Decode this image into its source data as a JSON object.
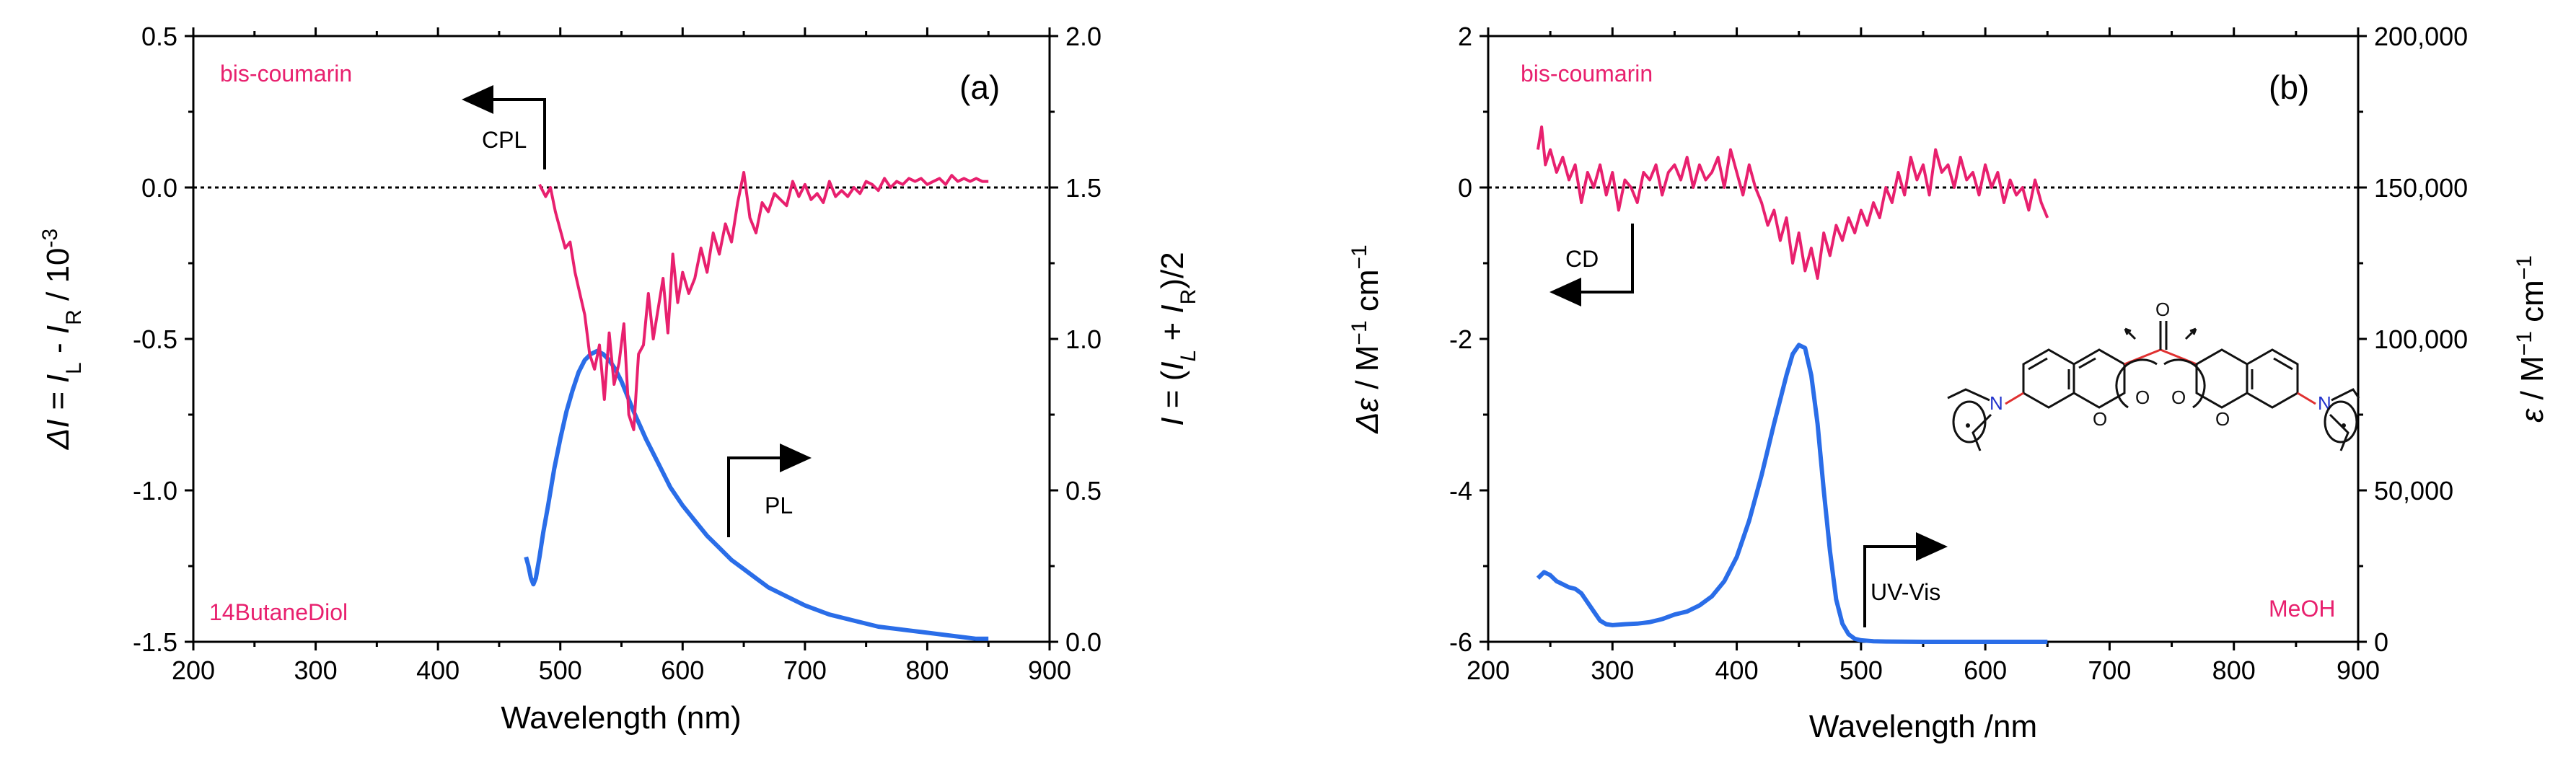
{
  "colors": {
    "cpl": "#e8206e",
    "pl": "#2a6de8",
    "axis": "#000000"
  },
  "chart_data": [
    {
      "type": "line",
      "panel_label": "(a)",
      "sample": "bis-coumarin",
      "solvent": "14ButaneDiol",
      "xlabel": "Wavelength (nm)",
      "ylabel_left": "ΔI = I_L - I_R / 10^-3",
      "ylabel_left_parts": {
        "a": "Δ",
        "b": "I = ",
        "c": "I",
        "d": "L",
        "e": " - ",
        "f": "I",
        "g": "R",
        "h": " / 10",
        "i": "-3"
      },
      "ylabel_right": "I = (I_L + I_R)/2",
      "ylabel_right_parts": {
        "a": "I",
        "b": " = (",
        "c": "I",
        "d": "L",
        "e": " + ",
        "f": "I",
        "g": "R",
        "h": ")/2"
      },
      "xlim": [
        200,
        900
      ],
      "ylim_left": [
        -1.5,
        0.5
      ],
      "ylim_right": [
        0.0,
        2.0
      ],
      "xticks": [
        "200",
        "300",
        "400",
        "500",
        "600",
        "700",
        "800",
        "900"
      ],
      "yticks_left": [
        "-1.5",
        "-1.0",
        "-0.5",
        "0.0",
        "0.5"
      ],
      "yticks_right": [
        "0.0",
        "0.5",
        "1.0",
        "1.5",
        "2.0"
      ],
      "annotations": [
        "CPL",
        "PL"
      ],
      "series": [
        {
          "name": "CPL",
          "axis": "left",
          "x": [
            483,
            488,
            492,
            496,
            500,
            504,
            508,
            512,
            516,
            520,
            524,
            528,
            532,
            536,
            540,
            544,
            548,
            552,
            556,
            560,
            564,
            568,
            572,
            576,
            580,
            584,
            588,
            592,
            596,
            600,
            605,
            610,
            615,
            620,
            625,
            630,
            635,
            640,
            645,
            650,
            655,
            660,
            665,
            670,
            675,
            680,
            685,
            690,
            695,
            700,
            705,
            710,
            715,
            720,
            725,
            730,
            735,
            740,
            745,
            750,
            755,
            760,
            765,
            770,
            775,
            780,
            785,
            790,
            795,
            800,
            805,
            810,
            815,
            820,
            825,
            830,
            835,
            840,
            845,
            850
          ],
          "y": [
            0.01,
            -0.03,
            0.0,
            -0.08,
            -0.14,
            -0.2,
            -0.18,
            -0.28,
            -0.35,
            -0.42,
            -0.55,
            -0.6,
            -0.52,
            -0.7,
            -0.48,
            -0.65,
            -0.58,
            -0.45,
            -0.75,
            -0.8,
            -0.55,
            -0.52,
            -0.35,
            -0.5,
            -0.4,
            -0.3,
            -0.48,
            -0.22,
            -0.38,
            -0.28,
            -0.35,
            -0.3,
            -0.2,
            -0.28,
            -0.15,
            -0.22,
            -0.12,
            -0.18,
            -0.05,
            0.05,
            -0.1,
            -0.15,
            -0.05,
            -0.08,
            -0.02,
            -0.04,
            -0.06,
            0.02,
            -0.03,
            0.01,
            -0.04,
            -0.02,
            -0.05,
            0.02,
            -0.03,
            -0.01,
            -0.03,
            0.0,
            -0.02,
            0.02,
            0.01,
            -0.01,
            0.03,
            0.0,
            0.02,
            0.01,
            0.03,
            0.02,
            0.03,
            0.01,
            0.02,
            0.03,
            0.01,
            0.04,
            0.02,
            0.03,
            0.02,
            0.03,
            0.02,
            0.02
          ]
        },
        {
          "name": "PL",
          "axis": "right",
          "x": [
            472,
            474,
            476,
            478,
            480,
            483,
            486,
            490,
            495,
            500,
            505,
            510,
            515,
            520,
            525,
            530,
            535,
            540,
            545,
            550,
            555,
            560,
            570,
            580,
            590,
            600,
            610,
            620,
            630,
            640,
            650,
            660,
            670,
            680,
            690,
            700,
            720,
            740,
            760,
            780,
            800,
            820,
            840,
            850
          ],
          "y": [
            0.28,
            0.25,
            0.21,
            0.19,
            0.21,
            0.28,
            0.36,
            0.45,
            0.57,
            0.67,
            0.76,
            0.83,
            0.89,
            0.93,
            0.95,
            0.96,
            0.95,
            0.93,
            0.9,
            0.86,
            0.81,
            0.76,
            0.67,
            0.59,
            0.51,
            0.45,
            0.4,
            0.35,
            0.31,
            0.27,
            0.24,
            0.21,
            0.18,
            0.16,
            0.14,
            0.12,
            0.09,
            0.07,
            0.05,
            0.04,
            0.03,
            0.02,
            0.01,
            0.01
          ]
        }
      ]
    },
    {
      "type": "line",
      "panel_label": "(b)",
      "sample": "bis-coumarin",
      "solvent": "MeOH",
      "xlabel": "Wavelength /nm",
      "ylabel_left": "Δε / M^-1 cm^-1",
      "ylabel_left_parts": {
        "a": "Δε",
        "b": " / M",
        "c": "−1",
        "d": " cm",
        "e": "−1"
      },
      "ylabel_right": "ε / M^-1 cm^-1",
      "ylabel_right_parts": {
        "a": "ε",
        "b": " / M",
        "c": "−1",
        "d": " cm",
        "e": "−1"
      },
      "xlim": [
        200,
        900
      ],
      "ylim_left": [
        -6,
        2
      ],
      "ylim_right": [
        0,
        200000
      ],
      "xticks": [
        "200",
        "300",
        "400",
        "500",
        "600",
        "700",
        "800",
        "900"
      ],
      "yticks_left": [
        "-6",
        "-4",
        "-2",
        "0",
        "2"
      ],
      "yticks_right": [
        "0",
        "50,000",
        "100,000",
        "150,000",
        "200,000"
      ],
      "annotations": [
        "CD",
        "UV-Vis"
      ],
      "molecule_labels": {
        "n1": "N",
        "n2": "N",
        "o": "O"
      },
      "series": [
        {
          "name": "CD",
          "axis": "left",
          "x": [
            240,
            243,
            246,
            250,
            255,
            260,
            265,
            270,
            275,
            280,
            285,
            290,
            295,
            300,
            305,
            310,
            315,
            320,
            325,
            330,
            335,
            340,
            345,
            350,
            355,
            360,
            365,
            370,
            375,
            380,
            385,
            390,
            395,
            400,
            405,
            410,
            415,
            420,
            425,
            430,
            435,
            440,
            445,
            450,
            455,
            460,
            465,
            470,
            475,
            480,
            485,
            490,
            495,
            500,
            505,
            510,
            515,
            520,
            525,
            530,
            535,
            540,
            545,
            550,
            555,
            560,
            565,
            570,
            575,
            580,
            585,
            590,
            595,
            600,
            605,
            610,
            615,
            620,
            625,
            630,
            635,
            640,
            645,
            650
          ],
          "y": [
            0.5,
            0.8,
            0.3,
            0.5,
            0.2,
            0.4,
            0.1,
            0.3,
            -0.2,
            0.2,
            0.0,
            0.3,
            -0.1,
            0.2,
            -0.3,
            0.1,
            0.0,
            -0.2,
            0.2,
            0.1,
            0.3,
            -0.1,
            0.2,
            0.3,
            0.1,
            0.4,
            0.0,
            0.3,
            0.1,
            0.2,
            0.4,
            0.0,
            0.5,
            0.2,
            -0.1,
            0.3,
            0.0,
            -0.2,
            -0.5,
            -0.3,
            -0.7,
            -0.4,
            -1.0,
            -0.6,
            -1.1,
            -0.8,
            -1.2,
            -0.6,
            -0.9,
            -0.5,
            -0.7,
            -0.4,
            -0.6,
            -0.3,
            -0.5,
            -0.2,
            -0.4,
            0.0,
            -0.2,
            0.2,
            -0.1,
            0.4,
            0.1,
            0.3,
            -0.1,
            0.5,
            0.2,
            0.3,
            0.0,
            0.4,
            0.1,
            0.2,
            -0.1,
            0.3,
            0.0,
            0.2,
            -0.2,
            0.1,
            -0.1,
            0.0,
            -0.3,
            0.1,
            -0.2,
            -0.4
          ]
        },
        {
          "name": "UV-Vis",
          "axis": "right",
          "x": [
            240,
            245,
            250,
            255,
            260,
            265,
            270,
            275,
            280,
            285,
            290,
            295,
            300,
            310,
            320,
            330,
            340,
            350,
            360,
            370,
            380,
            390,
            400,
            410,
            420,
            430,
            435,
            440,
            445,
            450,
            455,
            460,
            465,
            470,
            475,
            480,
            485,
            490,
            495,
            500,
            510,
            520,
            530,
            550,
            600,
            650
          ],
          "y": [
            21000,
            23000,
            22000,
            20000,
            19000,
            18000,
            17500,
            16000,
            13000,
            10000,
            7000,
            5800,
            5500,
            5800,
            6000,
            6500,
            7500,
            9000,
            10000,
            12000,
            15000,
            20000,
            28000,
            40000,
            55000,
            72000,
            80000,
            88000,
            95000,
            98000,
            97000,
            88000,
            72000,
            50000,
            30000,
            14000,
            6000,
            2500,
            1000,
            500,
            200,
            100,
            50,
            0,
            0,
            0
          ]
        }
      ]
    }
  ]
}
